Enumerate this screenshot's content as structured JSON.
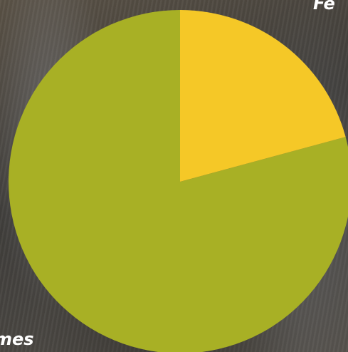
{
  "chart_data": {
    "type": "pie",
    "categories": [
      "Femmes",
      "Hommes"
    ],
    "values": [
      79.2,
      20.8
    ],
    "colors": [
      "#a8b025",
      "#f5c827"
    ],
    "title": "",
    "labels": {
      "femmes_visible": "mes",
      "hommes_visible": "Fe"
    }
  }
}
